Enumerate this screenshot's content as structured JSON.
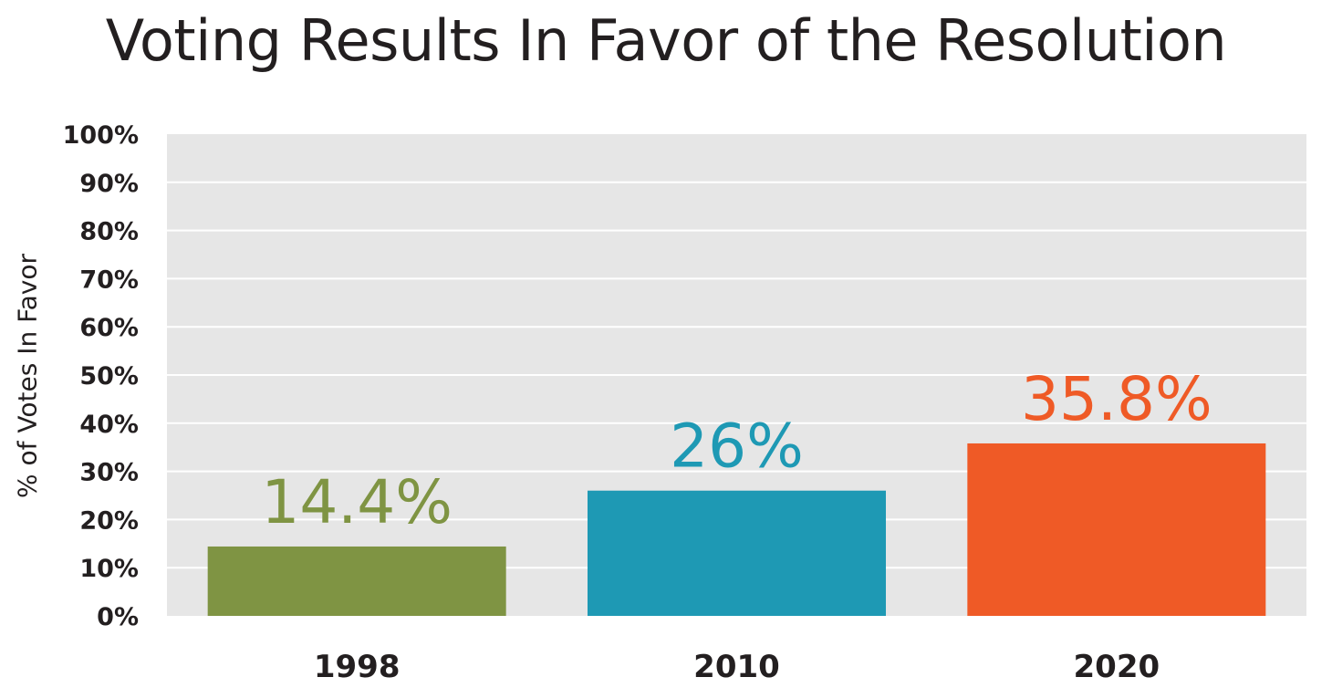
{
  "chart_data": {
    "type": "bar",
    "title": "Voting Results In Favor of the Resolution",
    "xlabel": "",
    "ylabel": "% of Votes In Favor",
    "categories": [
      "1998",
      "2010",
      "2020"
    ],
    "values": [
      14.4,
      26,
      35.8
    ],
    "data_labels": [
      "14.4%",
      "26%",
      "35.8%"
    ],
    "colors": [
      "#7f9443",
      "#1e99b4",
      "#ef5a26"
    ],
    "ylim": [
      0,
      100
    ],
    "yticks": [
      0,
      10,
      20,
      30,
      40,
      50,
      60,
      70,
      80,
      90,
      100
    ],
    "ytick_labels": [
      "0%",
      "10%",
      "20%",
      "30%",
      "40%",
      "50%",
      "60%",
      "70%",
      "80%",
      "90%",
      "100%"
    ],
    "grid": true,
    "plot_background": "#e6e6e6",
    "gridline_color": "#ffffff",
    "legend": "none"
  }
}
